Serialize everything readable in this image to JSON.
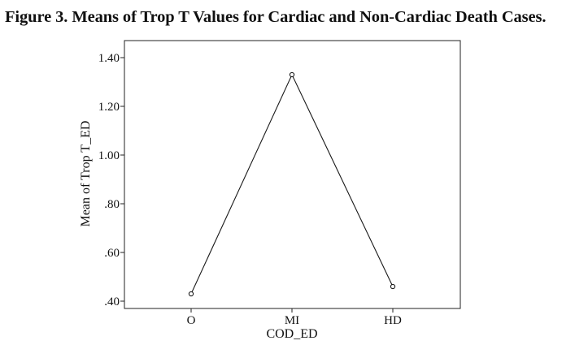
{
  "figure": {
    "title": "Figure 3. Means of Trop T Values for Cardiac and Non-Cardiac Death Cases."
  },
  "chart_data": {
    "type": "line",
    "title": "Figure 3. Means of Trop T Values for Cardiac and Non-Cardiac Death Cases.",
    "xlabel": "COD_ED",
    "ylabel": "Mean of Trop T_ED",
    "categories": [
      "O",
      "MI",
      "HD"
    ],
    "values": [
      0.43,
      1.33,
      0.46
    ],
    "ylim": [
      0.37,
      1.47
    ],
    "yticks": [
      0.4,
      0.6,
      0.8,
      1.0,
      1.2,
      1.4
    ],
    "ytick_labels": [
      ".40",
      ".60",
      ".80",
      "1.00",
      "1.20",
      "1.40"
    ],
    "grid": false,
    "legend": "none",
    "line_color": "#1a1a1a",
    "marker": "open-circle"
  }
}
